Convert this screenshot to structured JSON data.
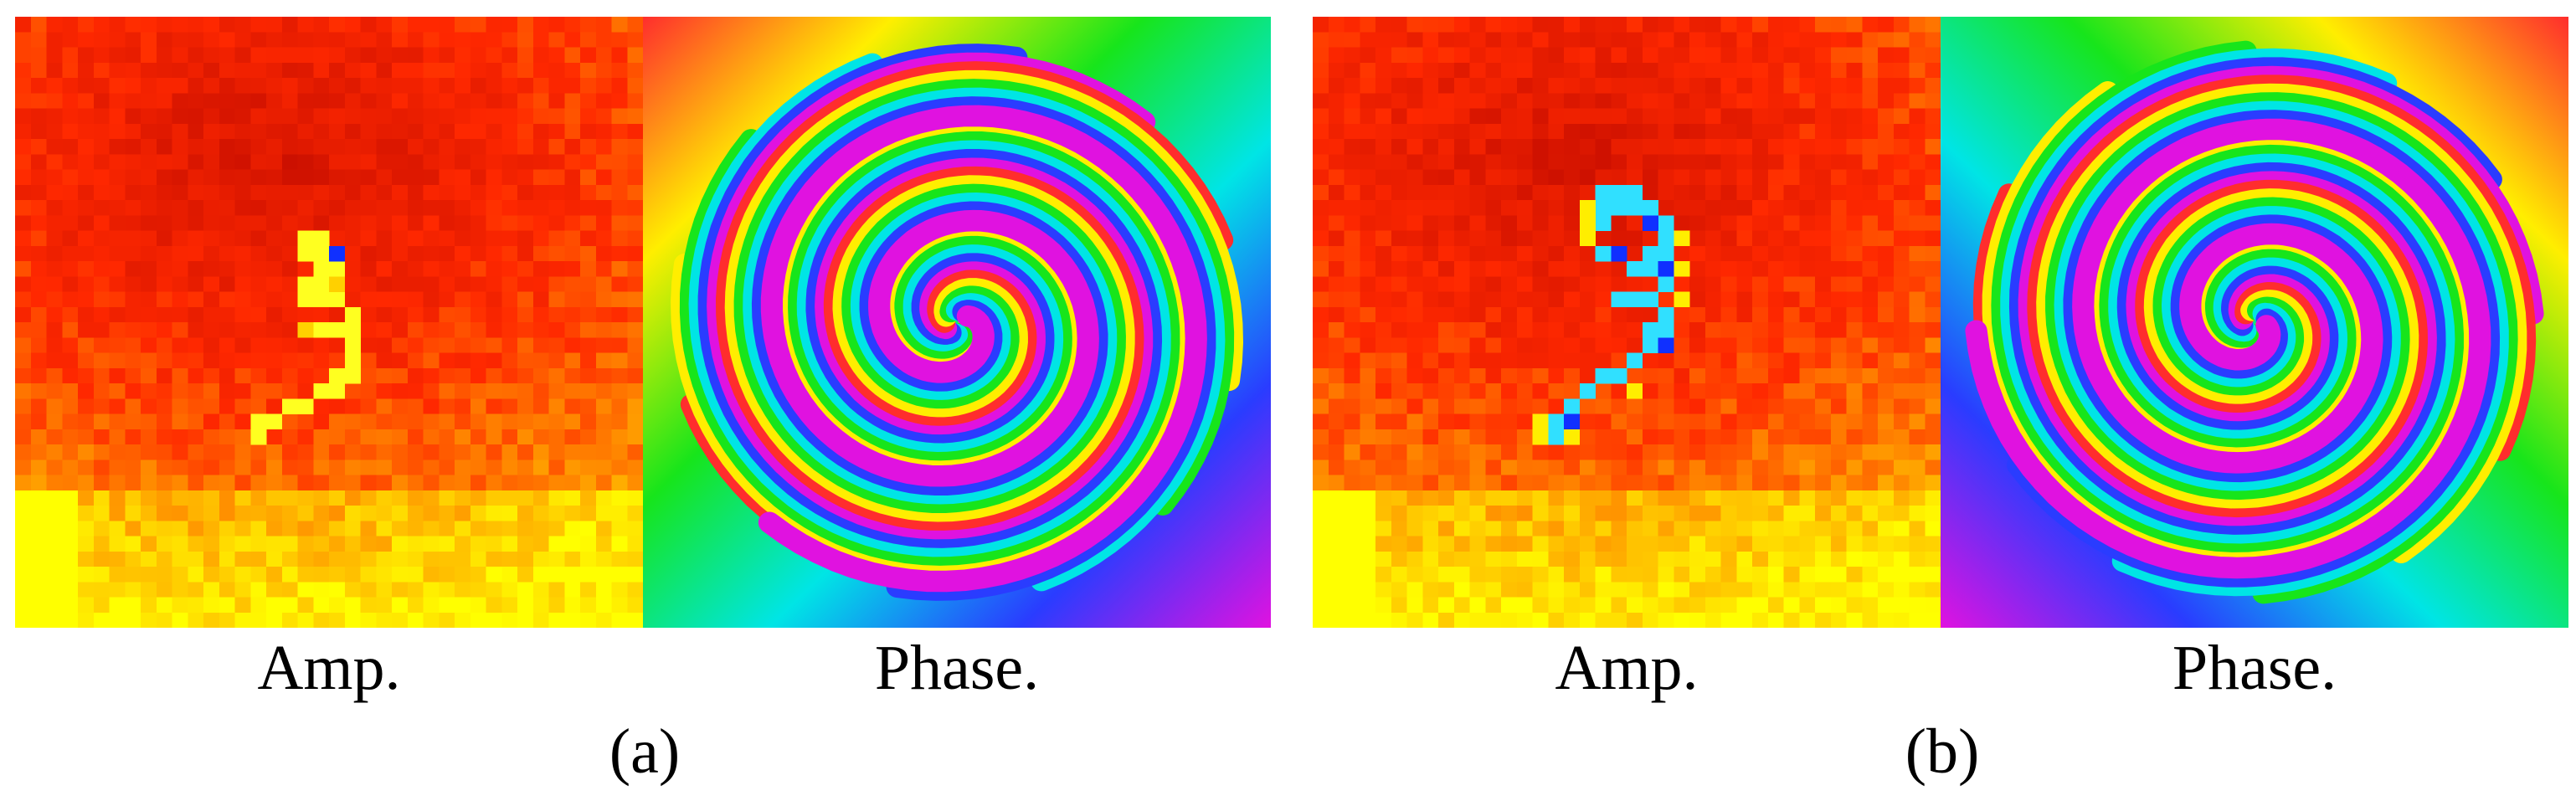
{
  "panels": [
    {
      "amp_label": "Amp.",
      "phase_label": "Phase.",
      "sub_label": "(a)"
    },
    {
      "amp_label": "Amp.",
      "phase_label": "Phase.",
      "sub_label": "(b)"
    }
  ],
  "colors": {
    "amp_dark": "#b40000",
    "amp_mid": "#e01a00",
    "amp_bright": "#ffee00",
    "amp_low": "#1030ff",
    "background": "#ffffff"
  }
}
